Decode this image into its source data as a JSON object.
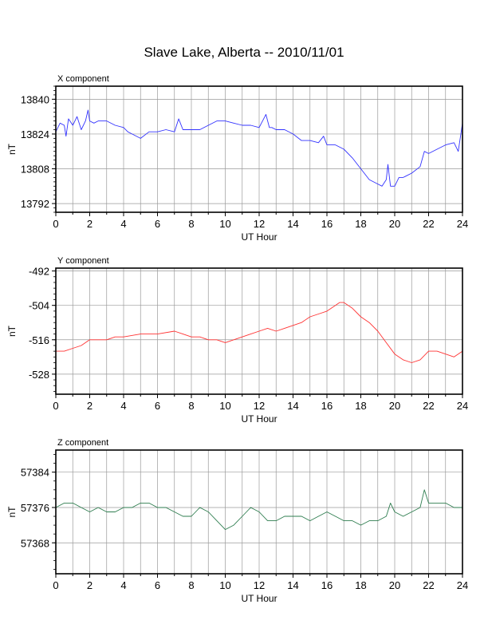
{
  "page_title": "Slave Lake, Alberta -- 2010/11/01",
  "chart_data": [
    {
      "type": "line",
      "title": "X component",
      "xlabel": "UT Hour",
      "ylabel": "nT",
      "xlim": [
        0,
        24
      ],
      "ylim": [
        13788,
        13846
      ],
      "xticks": [
        0,
        2,
        4,
        6,
        8,
        10,
        12,
        14,
        16,
        18,
        20,
        22,
        24
      ],
      "yticks": [
        13792,
        13808,
        13824,
        13840
      ],
      "grid": true,
      "color": "#3333ff",
      "series": [
        {
          "x": [
            0,
            0.25,
            0.5,
            0.6,
            0.75,
            1,
            1.25,
            1.5,
            1.75,
            1.9,
            2,
            2.25,
            2.5,
            3,
            3.5,
            4,
            4.25,
            4.5,
            5,
            5.5,
            6,
            6.5,
            7,
            7.25,
            7.5,
            8,
            8.5,
            9,
            9.5,
            10,
            10.5,
            11,
            11.5,
            12,
            12.4,
            12.6,
            12.75,
            13,
            13.5,
            14,
            14.5,
            15,
            15.5,
            15.8,
            16,
            16.5,
            17,
            17.5,
            18,
            18.5,
            19,
            19.25,
            19.5,
            19.6,
            19.75,
            20,
            20.25,
            20.5,
            21,
            21.5,
            21.75,
            22,
            22.5,
            23,
            23.5,
            23.75,
            24
          ],
          "y": [
            13825,
            13829,
            13828,
            13823,
            13831,
            13828,
            13832,
            13826,
            13830,
            13835,
            13830,
            13829,
            13830,
            13830,
            13828,
            13827,
            13825,
            13824,
            13822,
            13825,
            13825,
            13826,
            13825,
            13831,
            13826,
            13826,
            13826,
            13828,
            13830,
            13830,
            13829,
            13828,
            13828,
            13827,
            13833,
            13827,
            13827,
            13826,
            13826,
            13824,
            13821,
            13821,
            13820,
            13823,
            13819,
            13819,
            13817,
            13813,
            13808,
            13803,
            13801,
            13800,
            13803,
            13810,
            13800,
            13800,
            13804,
            13804,
            13806,
            13809,
            13816,
            13815,
            13817,
            13819,
            13820,
            13816,
            13829
          ]
        }
      ]
    },
    {
      "type": "line",
      "title": "Y component",
      "xlabel": "UT Hour",
      "ylabel": "nT",
      "xlim": [
        0,
        24
      ],
      "ylim": [
        -535,
        -491
      ],
      "xticks": [
        0,
        2,
        4,
        6,
        8,
        10,
        12,
        14,
        16,
        18,
        20,
        22,
        24
      ],
      "yticks": [
        -492,
        -504,
        -516,
        -528
      ],
      "grid": true,
      "color": "#ff3333",
      "series": [
        {
          "x": [
            0,
            0.5,
            1,
            1.5,
            2,
            2.5,
            3,
            3.5,
            4,
            5,
            6,
            7,
            7.5,
            8,
            8.5,
            9,
            9.5,
            10,
            10.5,
            11,
            11.5,
            12,
            12.5,
            13,
            13.5,
            14,
            14.5,
            15,
            15.5,
            16,
            16.5,
            16.75,
            17,
            17.5,
            18,
            18.5,
            19,
            19.5,
            20,
            20.5,
            21,
            21.5,
            22,
            22.5,
            23,
            23.5,
            24
          ],
          "y": [
            -520,
            -520,
            -519,
            -518,
            -516,
            -516,
            -516,
            -515,
            -515,
            -514,
            -514,
            -513,
            -514,
            -515,
            -515,
            -516,
            -516,
            -517,
            -516,
            -515,
            -514,
            -513,
            -512,
            -513,
            -512,
            -511,
            -510,
            -508,
            -507,
            -506,
            -504,
            -503,
            -503,
            -505,
            -508,
            -510,
            -513,
            -517,
            -521,
            -523,
            -524,
            -523,
            -520,
            -520,
            -521,
            -522,
            -520
          ]
        }
      ]
    },
    {
      "type": "line",
      "title": "Z component",
      "xlabel": "UT Hour",
      "ylabel": "nT",
      "xlim": [
        0,
        24
      ],
      "ylim": [
        57361,
        57389
      ],
      "xticks": [
        0,
        2,
        4,
        6,
        8,
        10,
        12,
        14,
        16,
        18,
        20,
        22,
        24
      ],
      "yticks": [
        57368,
        57376,
        57384
      ],
      "grid": true,
      "color": "#2e7d4f",
      "series": [
        {
          "x": [
            0,
            0.5,
            1,
            1.5,
            2,
            2.5,
            3,
            3.5,
            4,
            4.5,
            5,
            5.5,
            6,
            6.5,
            7,
            7.5,
            8,
            8.5,
            9,
            9.5,
            10,
            10.5,
            11,
            11.5,
            12,
            12.5,
            13,
            13.5,
            14,
            14.5,
            15,
            15.5,
            16,
            16.5,
            17,
            17.5,
            18,
            18.5,
            19,
            19.5,
            19.75,
            20,
            20.5,
            21,
            21.5,
            21.75,
            22,
            22.5,
            23,
            23.5,
            24
          ],
          "y": [
            57376,
            57377,
            57377,
            57376,
            57375,
            57376,
            57375,
            57375,
            57376,
            57376,
            57377,
            57377,
            57376,
            57376,
            57375,
            57374,
            57374,
            57376,
            57375,
            57373,
            57371,
            57372,
            57374,
            57376,
            57375,
            57373,
            57373,
            57374,
            57374,
            57374,
            57373,
            57374,
            57375,
            57374,
            57373,
            57373,
            57372,
            57373,
            57373,
            57374,
            57377,
            57375,
            57374,
            57375,
            57376,
            57380,
            57377,
            57377,
            57377,
            57376,
            57376
          ]
        }
      ]
    }
  ]
}
